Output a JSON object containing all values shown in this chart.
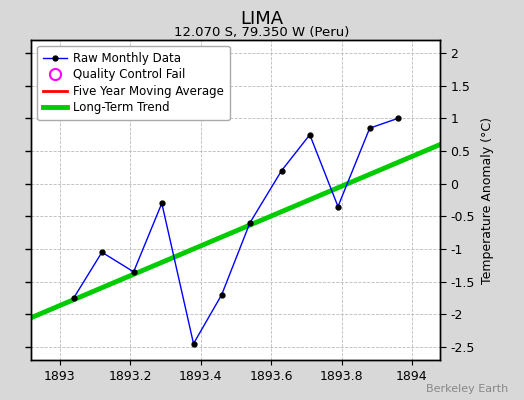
{
  "title": "LIMA",
  "subtitle": "12.070 S, 79.350 W (Peru)",
  "ylabel": "Temperature Anomaly (°C)",
  "watermark": "Berkeley Earth",
  "fig_facecolor": "#d8d8d8",
  "plot_bg_color": "#ffffff",
  "xlim": [
    1892.92,
    1894.08
  ],
  "ylim": [
    -2.7,
    2.2
  ],
  "xticks": [
    1893,
    1893.2,
    1893.4,
    1893.6,
    1893.8,
    1894
  ],
  "yticks": [
    -2.5,
    -2.0,
    -1.5,
    -1.0,
    -0.5,
    0.0,
    0.5,
    1.0,
    1.5,
    2.0
  ],
  "raw_x": [
    1893.04,
    1893.12,
    1893.21,
    1893.29,
    1893.38,
    1893.46,
    1893.54,
    1893.63,
    1893.71,
    1893.79,
    1893.88,
    1893.96
  ],
  "raw_y": [
    -1.75,
    -1.05,
    -1.35,
    -0.3,
    -2.45,
    -1.7,
    -0.6,
    0.2,
    0.75,
    -0.35,
    0.85,
    1.0
  ],
  "trend_x": [
    1892.92,
    1894.08
  ],
  "trend_y": [
    -2.05,
    0.6
  ],
  "raw_color": "blue",
  "raw_marker_color": "black",
  "trend_color": "#00cc00",
  "moving_avg_color": "red",
  "legend_qc_color": "magenta",
  "grid_color": "#bbbbbb",
  "title_fontsize": 13,
  "subtitle_fontsize": 9.5,
  "ylabel_fontsize": 9,
  "tick_fontsize": 9,
  "legend_fontsize": 8.5,
  "watermark_fontsize": 8
}
